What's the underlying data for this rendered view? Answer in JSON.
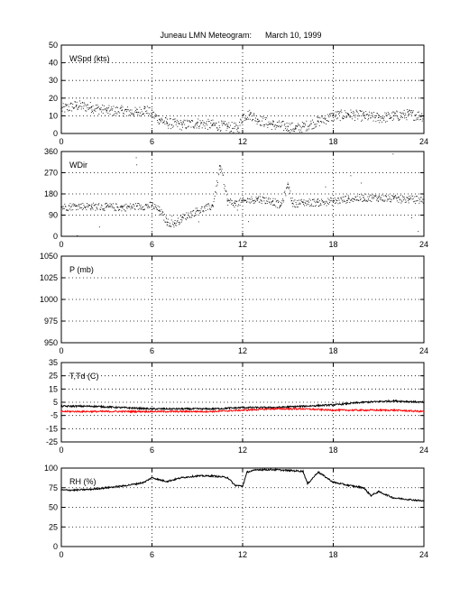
{
  "title": "Juneau LMN Meteogram:      March 10, 1999",
  "chart_data": [
    {
      "type": "scatter",
      "label": "WSpd (kts)",
      "xlim": [
        0,
        24
      ],
      "ylim": [
        0,
        50
      ],
      "xticks": [
        "0",
        "6",
        "12",
        "18",
        "24"
      ],
      "yticks": [
        "0",
        "10",
        "20",
        "30",
        "40",
        "50"
      ],
      "grid": true,
      "series": [
        {
          "color": "#000000",
          "x": [
            0,
            1,
            2,
            3,
            4,
            5,
            5.5,
            6,
            6.5,
            7,
            8,
            9,
            10,
            11,
            11.7,
            12,
            12.5,
            13,
            14,
            15,
            15.5,
            16,
            17,
            18,
            19,
            20,
            21,
            22,
            23,
            24
          ],
          "y": [
            14,
            16,
            15,
            13,
            13,
            12,
            14,
            11,
            8,
            6,
            5,
            6,
            5,
            4,
            3,
            10,
            11,
            8,
            5,
            4,
            3,
            4,
            7,
            10,
            11,
            10,
            9,
            10,
            11,
            10
          ]
        }
      ]
    },
    {
      "type": "scatter",
      "label": "WDir",
      "xlim": [
        0,
        24
      ],
      "ylim": [
        0,
        360
      ],
      "xticks": [
        "0",
        "6",
        "12",
        "18",
        "24"
      ],
      "yticks": [
        "0",
        "90",
        "180",
        "270",
        "360"
      ],
      "grid": true,
      "series": [
        {
          "color": "#000000",
          "x": [
            0,
            1,
            2,
            3,
            4,
            5,
            6,
            6.5,
            7,
            7.5,
            8,
            9,
            10,
            10.5,
            11,
            11.5,
            12,
            13,
            14,
            14.5,
            15,
            15.3,
            16,
            17,
            18,
            19,
            20,
            21,
            22,
            23,
            24
          ],
          "y": [
            125,
            130,
            128,
            126,
            124,
            128,
            132,
            110,
            60,
            55,
            80,
            110,
            130,
            300,
            150,
            140,
            150,
            160,
            150,
            130,
            220,
            140,
            145,
            145,
            150,
            160,
            165,
            165,
            160,
            158,
            155
          ]
        }
      ]
    },
    {
      "type": "scatter",
      "label": "P (mb)",
      "xlim": [
        0,
        24
      ],
      "ylim": [
        950,
        1050
      ],
      "xticks": [
        "0",
        "6",
        "12",
        "18",
        "24"
      ],
      "yticks": [
        "950",
        "975",
        "1000",
        "1025",
        "1050"
      ],
      "grid": true,
      "series": []
    },
    {
      "type": "line",
      "label": "T,Td (C)",
      "xlim": [
        0,
        24
      ],
      "ylim": [
        -25,
        35
      ],
      "xticks": [
        "0",
        "6",
        "12",
        "18",
        "24"
      ],
      "yticks": [
        "-25",
        "-15",
        "-5",
        "5",
        "15",
        "25",
        "35"
      ],
      "grid": true,
      "series": [
        {
          "color": "#000000",
          "x": [
            0,
            2,
            4,
            6,
            8,
            10,
            12,
            14,
            16,
            18,
            20,
            22,
            24
          ],
          "y": [
            2,
            2,
            1,
            0,
            0,
            0,
            1,
            1,
            2,
            3,
            5,
            6,
            5
          ]
        },
        {
          "color": "#ff0000",
          "x": [
            0,
            2,
            4,
            6,
            8,
            10,
            12,
            14,
            16,
            18,
            20,
            22,
            24
          ],
          "y": [
            -2,
            -2,
            -2,
            -2,
            -2,
            -2,
            -1,
            0,
            0,
            -1,
            -1,
            -1,
            -2
          ]
        }
      ]
    },
    {
      "type": "line",
      "label": "RH (%)",
      "xlim": [
        0,
        24
      ],
      "ylim": [
        0,
        100
      ],
      "xticks": [
        "0",
        "6",
        "12",
        "18",
        "24"
      ],
      "yticks": [
        "0",
        "25",
        "50",
        "75",
        "100"
      ],
      "grid": true,
      "series": [
        {
          "color": "#000000",
          "x": [
            0,
            1,
            2,
            3,
            4,
            5,
            5.5,
            6,
            6.5,
            7,
            8,
            9,
            10,
            11,
            11.5,
            12,
            12.3,
            13,
            14,
            15,
            16,
            16.3,
            17,
            18,
            19,
            20,
            20.5,
            21,
            22,
            23,
            24
          ],
          "y": [
            72,
            72,
            73,
            75,
            77,
            80,
            82,
            88,
            85,
            83,
            88,
            90,
            90,
            88,
            78,
            77,
            95,
            98,
            98,
            97,
            96,
            80,
            95,
            82,
            78,
            75,
            65,
            70,
            62,
            60,
            58
          ]
        }
      ]
    }
  ]
}
